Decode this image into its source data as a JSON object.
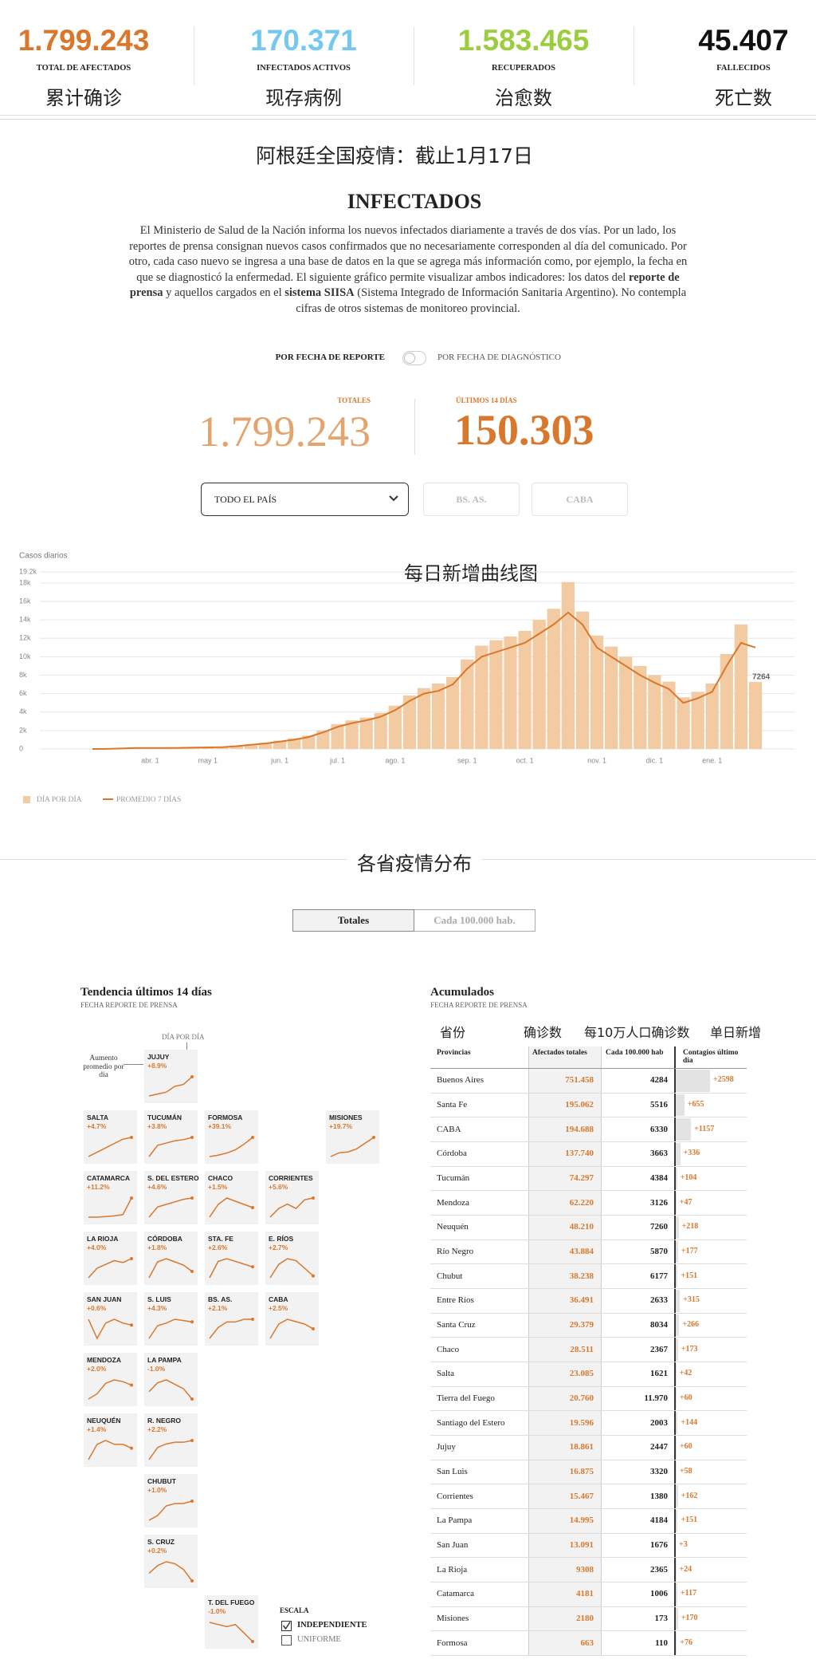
{
  "stats": [
    {
      "value": "1.799.243",
      "label": "TOTAL DE AFECTADOS",
      "note": "累计确诊",
      "color": "#d9782d"
    },
    {
      "value": "170.371",
      "label": "INFECTADOS ACTIVOS",
      "note": "现存病例",
      "color": "#74c7f0"
    },
    {
      "value": "1.583.465",
      "label": "RECUPERADOS",
      "note": "治愈数",
      "color": "#9ccd3f"
    },
    {
      "value": "45.407",
      "label": "FALLECIDOS",
      "note": "死亡数",
      "color": "#111111"
    }
  ],
  "page_title": "阿根廷全国疫情：截止1月17日",
  "section": {
    "title": "INFECTADOS",
    "paragraph": [
      "El Ministerio de Salud de la Nación informa los nuevos infectados diariamente a través de dos vías. Por un lado, los reportes de prensa consignan nuevos casos confirmados que no necesariamente corresponden al día del comunicado. Por otro, cada caso nuevo se ingresa a una base de datos en la que se agrega más información como, por ejemplo, la fecha en que se diagnosticó la enfermedad. El siguiente gráfico permite visualizar ambos indicadores: los datos del ",
      "reporte de prensa",
      " y aquellos cargados en el ",
      "sistema SIISA",
      " (Sistema Integrado de Información Sanitaria Argentino). No contempla cifras de otros sistemas de monitoreo provincial."
    ]
  },
  "toggle": {
    "left": "POR FECHA DE REPORTE",
    "right": "POR FECHA DE DIAGNÓSTICO"
  },
  "totals": {
    "total_label": "TOTALES",
    "total": "1.799.243",
    "recent_label": "ÚLTIMOS 14 DÍAS",
    "recent": "150.303"
  },
  "filters": {
    "select": "TODO EL PAÍS",
    "buttons": [
      "BS. AS.",
      "CABA"
    ]
  },
  "chart_data": {
    "type": "bar",
    "title": "每日新增曲线图",
    "y_label": "Casos diarios",
    "categories": [
      null,
      null,
      null,
      null,
      "abr. 1",
      null,
      null,
      null,
      "may 1",
      null,
      null,
      null,
      null,
      "jun. 1",
      null,
      null,
      null,
      "jul. 1",
      null,
      null,
      null,
      "ago. 1",
      null,
      null,
      null,
      null,
      "sep. 1",
      null,
      null,
      null,
      "oct. 1",
      null,
      null,
      null,
      null,
      "nov. 1",
      null,
      null,
      null,
      "dic. 1",
      null,
      null,
      null,
      "ene. 1",
      null,
      null,
      null
    ],
    "series": [
      {
        "name": "DÍA POR DÍA",
        "type": "bar",
        "color": "#f3cba2",
        "values": [
          0,
          10,
          80,
          120,
          110,
          130,
          140,
          170,
          190,
          230,
          340,
          500,
          680,
          900,
          1150,
          1450,
          2000,
          2700,
          3100,
          3400,
          3900,
          4700,
          5800,
          6600,
          7100,
          7800,
          9700,
          11200,
          11800,
          12200,
          12800,
          14000,
          15200,
          18100,
          14900,
          12300,
          11100,
          10000,
          9000,
          8000,
          7300,
          5600,
          6200,
          7100,
          10300,
          13500,
          7264
        ]
      },
      {
        "name": "PROMEDIO 7 DÍAS",
        "type": "line",
        "color": "#d9782d",
        "values": [
          0,
          5,
          50,
          100,
          100,
          110,
          120,
          150,
          170,
          200,
          300,
          450,
          600,
          800,
          1000,
          1300,
          1800,
          2400,
          2800,
          3100,
          3500,
          4200,
          5200,
          6000,
          6300,
          7000,
          8700,
          10000,
          10500,
          11000,
          11500,
          12500,
          13500,
          14800,
          13500,
          11000,
          10000,
          9000,
          8000,
          7200,
          6500,
          5000,
          5500,
          6200,
          9000,
          11500,
          11000
        ]
      }
    ],
    "ylim": [
      0,
      19200
    ],
    "yticks": [
      0,
      {
        "value": 2000,
        "label": "2k"
      },
      {
        "value": 4000,
        "label": "4k"
      },
      {
        "value": 6000,
        "label": "6k"
      },
      {
        "value": 8000,
        "label": "8k"
      },
      {
        "value": 10000,
        "label": "10k"
      },
      {
        "value": 12000,
        "label": "12k"
      },
      {
        "value": 14000,
        "label": "14k"
      },
      {
        "value": 16000,
        "label": "16k"
      },
      {
        "value": 18000,
        "label": "18k"
      },
      {
        "value": 19200,
        "label": "19.2k"
      }
    ],
    "grid": true
  },
  "provinces_title": "各省疫情分布",
  "tabs": [
    "Totales",
    "Cada 100.000 hab."
  ],
  "trend": {
    "title": "Tendencia últimos 14 días",
    "subtitle": "FECHA REPORTE DE PRENSA",
    "day_label": "DÍA POR DÍA",
    "note": "Aumento promedio por día",
    "color": "#d9782d",
    "tiles": [
      {
        "name": "JUJUY",
        "change": "+8.9%",
        "values": [
          20,
          25,
          30,
          45,
          50,
          70
        ]
      },
      {
        "name": "SALTA",
        "change": "+4.7%",
        "values": [
          30,
          35,
          40,
          45,
          50,
          52
        ]
      },
      {
        "name": "TUCUMÁN",
        "change": "+3.8%",
        "values": [
          30,
          40,
          42,
          44,
          45,
          47
        ]
      },
      {
        "name": "FORMOSA",
        "change": "+39.1%",
        "values": [
          5,
          10,
          18,
          30,
          50,
          75
        ]
      },
      {
        "name": "MISIONES",
        "change": "+19.7%",
        "values": [
          10,
          20,
          22,
          30,
          45,
          60
        ]
      },
      {
        "name": "CATAMARCA",
        "change": "+11.2%",
        "values": [
          10,
          10,
          11,
          12,
          14,
          40
        ]
      },
      {
        "name": "S. DEL ESTERO",
        "change": "+4.6%",
        "values": [
          30,
          38,
          40,
          42,
          44,
          45
        ]
      },
      {
        "name": "CHACO",
        "change": "+1.5%",
        "values": [
          40,
          44,
          46,
          45,
          44,
          43
        ]
      },
      {
        "name": "CORRIENTES",
        "change": "+5.6%",
        "values": [
          20,
          30,
          35,
          30,
          40,
          42
        ]
      },
      {
        "name": "LA RIOJA",
        "change": "+4.0%",
        "values": [
          35,
          40,
          42,
          44,
          43,
          45
        ]
      },
      {
        "name": "CÓRDOBA",
        "change": "+1.8%",
        "values": [
          40,
          45,
          46,
          45,
          44,
          42
        ]
      },
      {
        "name": "STA. FE",
        "change": "+2.6%",
        "values": [
          40,
          46,
          47,
          46,
          45,
          44
        ]
      },
      {
        "name": "E. RÍOS",
        "change": "+2.7%",
        "values": [
          35,
          42,
          45,
          44,
          40,
          36
        ]
      },
      {
        "name": "SAN JUAN",
        "change": "+0.6%",
        "values": [
          40,
          30,
          38,
          40,
          38,
          37
        ]
      },
      {
        "name": "S. LUIS",
        "change": "+4.3%",
        "values": [
          30,
          40,
          42,
          45,
          44,
          43
        ]
      },
      {
        "name": "BS. AS.",
        "change": "+2.1%",
        "values": [
          38,
          42,
          44,
          44,
          45,
          45
        ]
      },
      {
        "name": "CABA",
        "change": "+2.5%",
        "values": [
          40,
          46,
          48,
          47,
          46,
          44
        ]
      },
      {
        "name": "MENDOZA",
        "change": "+2.0%",
        "values": [
          35,
          38,
          44,
          46,
          45,
          43
        ]
      },
      {
        "name": "LA PAMPA",
        "change": "-1.0%",
        "values": [
          40,
          46,
          48,
          45,
          42,
          35
        ]
      },
      {
        "name": "NEUQUÉN",
        "change": "+1.4%",
        "values": [
          40,
          44,
          45,
          44,
          44,
          43
        ]
      },
      {
        "name": "R. NEGRO",
        "change": "+2.2%",
        "values": [
          35,
          42,
          44,
          45,
          45,
          46
        ]
      },
      {
        "name": "CHUBUT",
        "change": "+1.0%",
        "values": [
          38,
          40,
          44,
          45,
          45,
          46
        ]
      },
      {
        "name": "S. CRUZ",
        "change": "+0.2%",
        "values": [
          40,
          44,
          46,
          45,
          42,
          36
        ]
      },
      {
        "name": "T. DEL FUEGO",
        "change": "-1.0%",
        "values": [
          45,
          44,
          43,
          44,
          40,
          36
        ]
      }
    ],
    "scale": {
      "title": "ESCALA",
      "options": [
        "INDEPENDIENTE",
        "UNIFORME"
      ]
    }
  },
  "table": {
    "title": "Acumulados",
    "subtitle": "FECHA REPORTE DE PRENSA",
    "notes": [
      "省份",
      "确诊数",
      "每10万人口确诊数",
      "单日新增"
    ],
    "header": [
      "Provincias",
      "Afectados totales",
      "Cada 100.000 hab",
      "Contagios último día"
    ],
    "rows": [
      [
        "Buenos Aires",
        "751.458",
        "4284",
        "+2598"
      ],
      [
        "Santa Fe",
        "195.062",
        "5516",
        "+655"
      ],
      [
        "CABA",
        "194.688",
        "6330",
        "+1157"
      ],
      [
        "Córdoba",
        "137.740",
        "3663",
        "+336"
      ],
      [
        "Tucumán",
        "74.297",
        "4384",
        "+104"
      ],
      [
        "Mendoza",
        "62.220",
        "3126",
        "+47"
      ],
      [
        "Neuquén",
        "48.210",
        "7260",
        "+218"
      ],
      [
        "Río Negro",
        "43.884",
        "5870",
        "+177"
      ],
      [
        "Chubut",
        "38.238",
        "6177",
        "+151"
      ],
      [
        "Entre Ríos",
        "36.491",
        "2633",
        "+315"
      ],
      [
        "Santa Cruz",
        "29.379",
        "8034",
        "+266"
      ],
      [
        "Chaco",
        "28.511",
        "2367",
        "+173"
      ],
      [
        "Salta",
        "23.085",
        "1621",
        "+42"
      ],
      [
        "Tierra del Fuego",
        "20.760",
        "11.970",
        "+60"
      ],
      [
        "Santiago del Estero",
        "19.596",
        "2003",
        "+144"
      ],
      [
        "Jujuy",
        "18.861",
        "2447",
        "+60"
      ],
      [
        "San Luis",
        "16.875",
        "3320",
        "+58"
      ],
      [
        "Corrientes",
        "15.467",
        "1380",
        "+162"
      ],
      [
        "La Pampa",
        "14.995",
        "4184",
        "+151"
      ],
      [
        "San Juan",
        "13.091",
        "1676",
        "+3"
      ],
      [
        "La Rioja",
        "9308",
        "2365",
        "+24"
      ],
      [
        "Catamarca",
        "4181",
        "1006",
        "+117"
      ],
      [
        "Misiones",
        "2180",
        "173",
        "+170"
      ],
      [
        "Formosa",
        "663",
        "110",
        "+76"
      ]
    ]
  }
}
